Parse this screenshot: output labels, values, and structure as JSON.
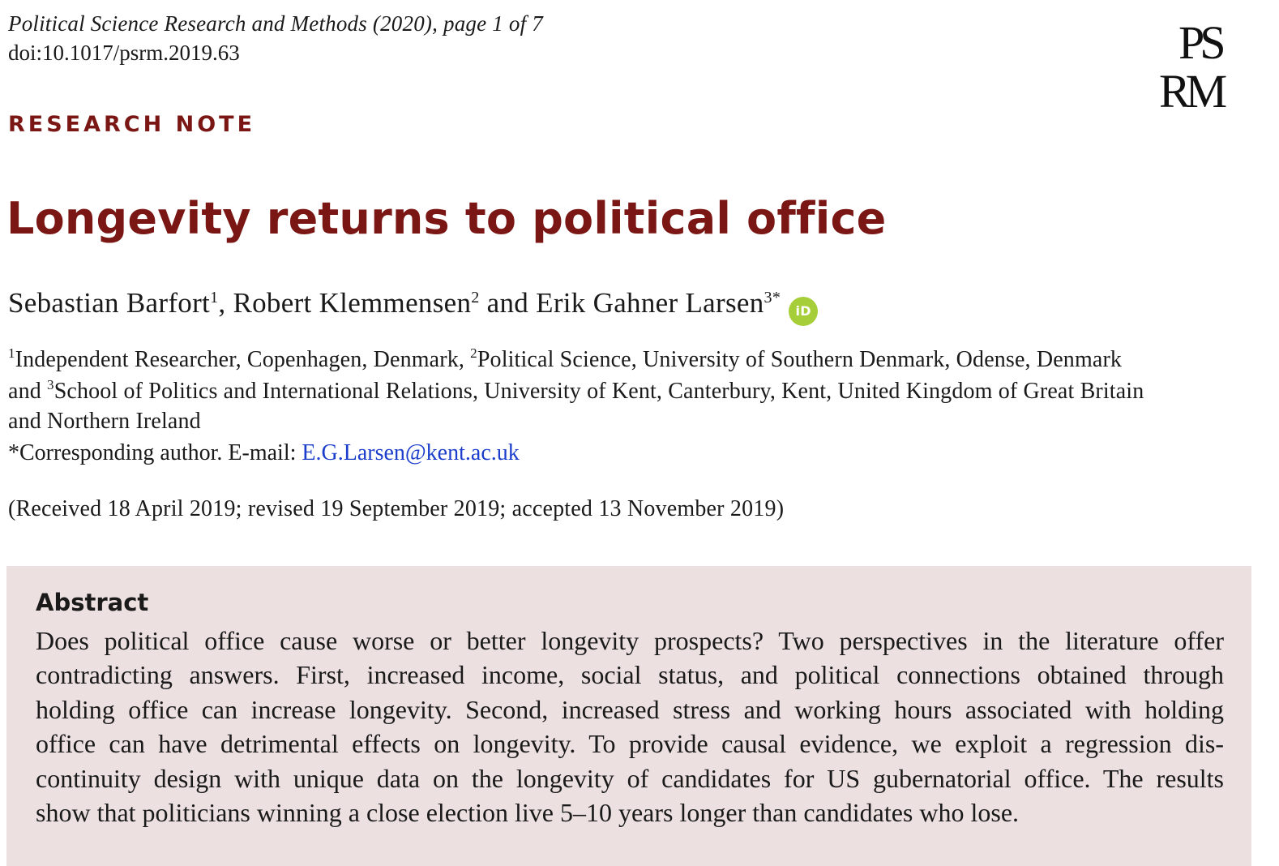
{
  "header": {
    "journal": "Political Science Research and Methods (2020), page 1 of 7",
    "doi": "doi:10.1017/psrm.2019.63",
    "logo": {
      "icon": "psrm-logo",
      "line1": "PS",
      "line2": "RM"
    }
  },
  "article": {
    "section_label": "RESEARCH NOTE",
    "title": "Longevity returns to political office",
    "authors": [
      {
        "name": "Sebastian Barfort",
        "sup": "1"
      },
      {
        "name": "Robert Klemmensen",
        "sup": "2"
      },
      {
        "name": "Erik Gahner Larsen",
        "sup": "3*"
      }
    ],
    "author_separator_1": ", ",
    "author_separator_2": " and ",
    "orcid_icon": "orcid-icon",
    "orcid_label": "iD",
    "orcid_color": "#a6ce39",
    "affiliations": {
      "sup1": "1",
      "aff1": "Independent Researcher, Copenhagen, Denmark, ",
      "sup2": "2",
      "aff2": "Political Science, University of Southern Denmark, Odense, Denmark",
      "line2_prefix": "and ",
      "sup3": "3",
      "aff3": "School of Politics and International Relations, University of Kent, Canterbury, Kent, United Kingdom of Great Britain",
      "line3": "and Northern Ireland"
    },
    "corresponding_prefix": "*Corresponding author. E-mail: ",
    "email": "E.G.Larsen@kent.ac.uk",
    "received": "(Received 18 April 2019; revised 19 September 2019; accepted 13 November 2019)",
    "abstract": {
      "heading": "Abstract",
      "lines": [
        "Does political office cause worse or better longevity prospects? Two perspectives in the literature offer",
        "contradicting answers. First, increased income, social status, and political connections obtained through",
        "holding office can increase longevity. Second, increased stress and working hours associated with holding",
        "office can have detrimental effects on longevity. To provide causal evidence, we exploit a regression dis-",
        "continuity design with unique data on the longevity of candidates for US gubernatorial office. The results",
        "show that politicians winning a close election live 5–10 years longer than candidates who lose."
      ]
    },
    "colors": {
      "accent": "#7a1714",
      "abstract_bg": "#ece0e0",
      "link": "#1a3dcc"
    }
  }
}
